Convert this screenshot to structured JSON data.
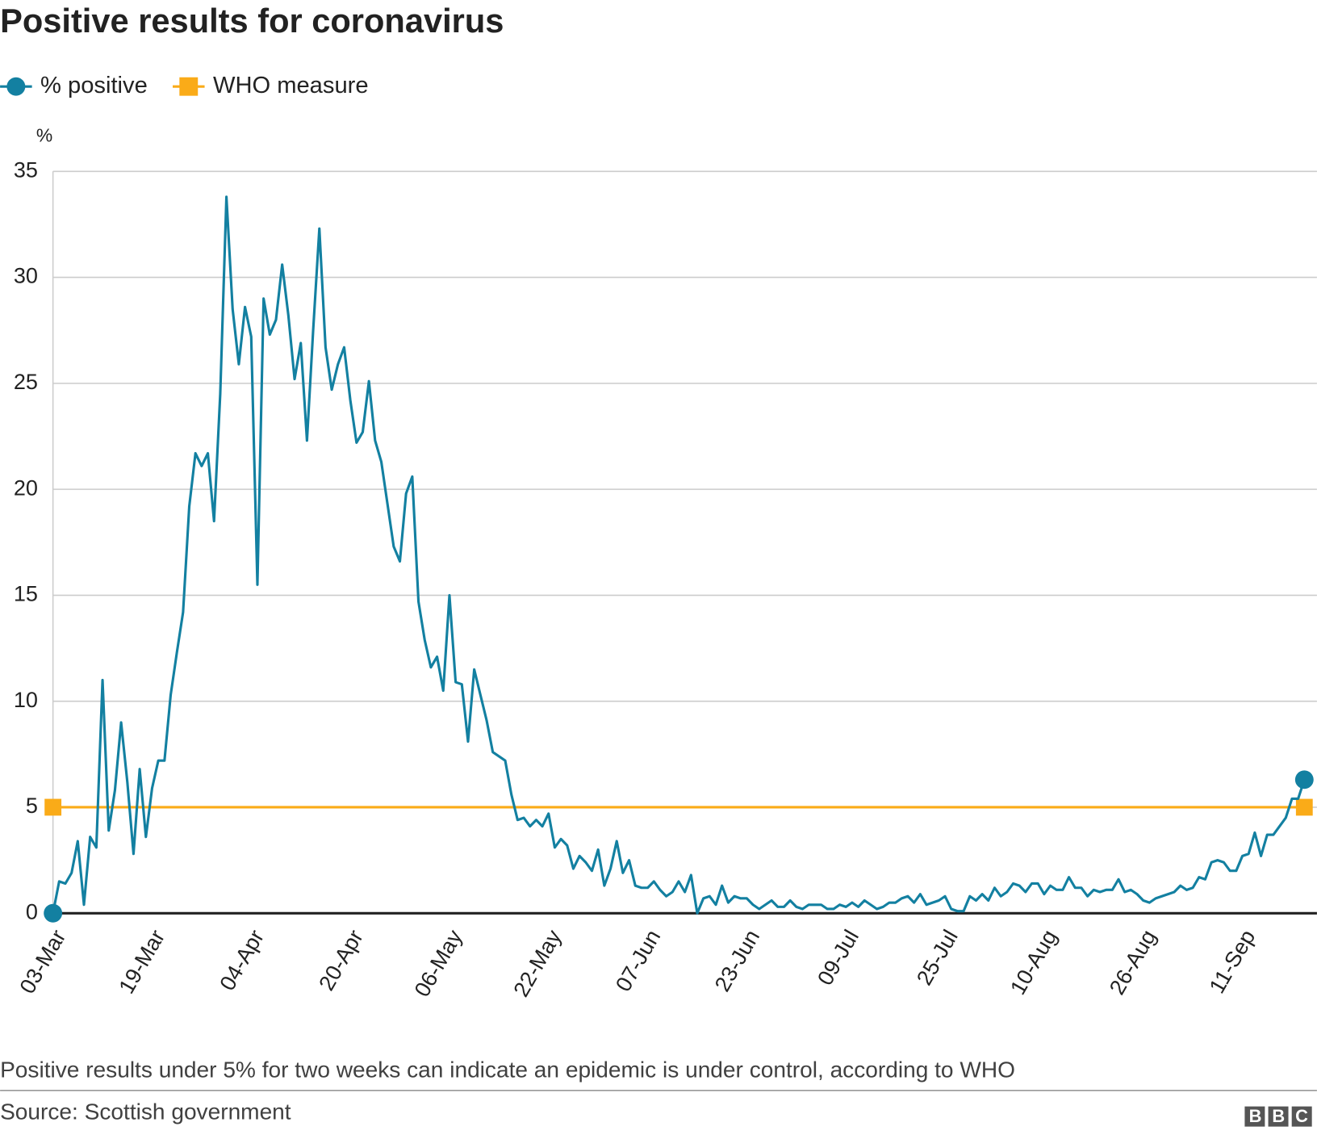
{
  "chart_data": {
    "type": "line",
    "title": "Positive results for coronavirus",
    "y_label": "%",
    "note": "Positive results under 5% for two weeks can indicate an epidemic is under control, according to WHO",
    "source": "Source: Scottish government",
    "logo": "BBC",
    "categories": [
      "03-Mar",
      null,
      null,
      null,
      null,
      null,
      null,
      null,
      null,
      null,
      null,
      null,
      null,
      null,
      null,
      null,
      "19-Mar",
      null,
      null,
      null,
      null,
      null,
      null,
      null,
      null,
      null,
      null,
      null,
      null,
      null,
      null,
      null,
      "04-Apr",
      null,
      null,
      null,
      null,
      null,
      null,
      null,
      null,
      null,
      null,
      null,
      null,
      null,
      null,
      null,
      "20-Apr",
      null,
      null,
      null,
      null,
      null,
      null,
      null,
      null,
      null,
      null,
      null,
      null,
      null,
      null,
      null,
      "06-May",
      null,
      null,
      null,
      null,
      null,
      null,
      null,
      null,
      null,
      null,
      null,
      null,
      null,
      null,
      null,
      "22-May",
      null,
      null,
      null,
      null,
      null,
      null,
      null,
      null,
      null,
      null,
      null,
      null,
      null,
      null,
      null,
      "07-Jun",
      null,
      null,
      null,
      null,
      null,
      null,
      null,
      null,
      null,
      null,
      null,
      null,
      null,
      null,
      null,
      "23-Jun",
      null,
      null,
      null,
      null,
      null,
      null,
      null,
      null,
      null,
      null,
      null,
      null,
      null,
      null,
      null,
      "09-Jul",
      null,
      null,
      null,
      null,
      null,
      null,
      null,
      null,
      null,
      null,
      null,
      null,
      null,
      null,
      null,
      "25-Jul",
      null,
      null,
      null,
      null,
      null,
      null,
      null,
      null,
      null,
      null,
      null,
      null,
      null,
      null,
      null,
      "10-Aug",
      null,
      null,
      null,
      null,
      null,
      null,
      null,
      null,
      null,
      null,
      null,
      null,
      null,
      null,
      null,
      "26-Aug",
      null,
      null,
      null,
      null,
      null,
      null,
      null,
      null,
      null,
      null,
      null,
      null,
      null,
      null,
      null,
      "11-Sep",
      null,
      null,
      null,
      null,
      null,
      null,
      null,
      null,
      null,
      null
    ],
    "series": [
      {
        "name": "% positive",
        "color": "#1380A1",
        "marker": "circle",
        "values": [
          0,
          1.5,
          1.4,
          1.9,
          3.4,
          0.4,
          3.6,
          3.1,
          11,
          3.9,
          5.8,
          9,
          6.2,
          2.8,
          6.8,
          3.6,
          5.9,
          7.2,
          7.2,
          10.3,
          12.3,
          14.2,
          19.2,
          21.7,
          21.1,
          21.7,
          18.5,
          24.5,
          33.8,
          28.5,
          25.9,
          28.6,
          27.2,
          15.5,
          29,
          27.3,
          28,
          30.6,
          28.2,
          25.2,
          26.9,
          22.3,
          27.5,
          32.3,
          26.7,
          24.7,
          25.9,
          26.7,
          24.2,
          22.2,
          22.7,
          25.1,
          22.3,
          21.3,
          19.3,
          17.3,
          16.6,
          19.8,
          20.6,
          14.7,
          12.9,
          11.6,
          12.1,
          10.5,
          15,
          10.9,
          10.8,
          8.1,
          11.5,
          10.3,
          9.1,
          7.6,
          7.4,
          7.2,
          5.6,
          4.4,
          4.5,
          4.1,
          4.4,
          4.1,
          4.7,
          3.1,
          3.5,
          3.2,
          2.1,
          2.7,
          2.4,
          2,
          3,
          1.3,
          2.1,
          3.4,
          1.9,
          2.5,
          1.3,
          1.2,
          1.2,
          1.5,
          1.1,
          0.8,
          1,
          1.5,
          1,
          1.8,
          0,
          0.7,
          0.8,
          0.4,
          1.3,
          0.5,
          0.8,
          0.7,
          0.7,
          0.4,
          0.2,
          0.4,
          0.6,
          0.3,
          0.3,
          0.6,
          0.3,
          0.2,
          0.4,
          0.4,
          0.4,
          0.2,
          0.2,
          0.4,
          0.3,
          0.5,
          0.3,
          0.6,
          0.4,
          0.2,
          0.3,
          0.5,
          0.5,
          0.7,
          0.8,
          0.5,
          0.9,
          0.4,
          0.5,
          0.6,
          0.8,
          0.2,
          0.1,
          0.1,
          0.8,
          0.6,
          0.9,
          0.6,
          1.2,
          0.8,
          1,
          1.4,
          1.3,
          1,
          1.4,
          1.4,
          0.9,
          1.3,
          1.1,
          1.1,
          1.7,
          1.2,
          1.2,
          0.8,
          1.1,
          1,
          1.1,
          1.1,
          1.6,
          1,
          1.1,
          0.9,
          0.6,
          0.5,
          0.7,
          0.8,
          0.9,
          1,
          1.3,
          1.1,
          1.2,
          1.7,
          1.6,
          2.4,
          2.5,
          2.4,
          2,
          2,
          2.7,
          2.8,
          3.8,
          2.7,
          3.7,
          3.7,
          4.1,
          4.5,
          5.4,
          5.4,
          6.3
        ]
      },
      {
        "name": "WHO measure",
        "color": "#FAAB18",
        "marker": "square",
        "values": [
          5,
          5,
          5,
          5,
          5,
          5,
          5,
          5,
          5,
          5,
          5,
          5,
          5,
          5,
          5,
          5,
          5,
          5,
          5,
          5,
          5,
          5,
          5,
          5,
          5,
          5,
          5,
          5,
          5,
          5,
          5,
          5,
          5,
          5,
          5,
          5,
          5,
          5,
          5,
          5,
          5,
          5,
          5,
          5,
          5,
          5,
          5,
          5,
          5,
          5,
          5,
          5,
          5,
          5,
          5,
          5,
          5,
          5,
          5,
          5,
          5,
          5,
          5,
          5,
          5,
          5,
          5,
          5,
          5,
          5,
          5,
          5,
          5,
          5,
          5,
          5,
          5,
          5,
          5,
          5,
          5,
          5,
          5,
          5,
          5,
          5,
          5,
          5,
          5,
          5,
          5,
          5,
          5,
          5,
          5,
          5,
          5,
          5,
          5,
          5,
          5,
          5,
          5,
          5,
          5,
          5,
          5,
          5,
          5,
          5,
          5,
          5,
          5,
          5,
          5,
          5,
          5,
          5,
          5,
          5,
          5,
          5,
          5,
          5,
          5,
          5,
          5,
          5,
          5,
          5,
          5,
          5,
          5,
          5,
          5,
          5,
          5,
          5,
          5,
          5,
          5,
          5,
          5,
          5,
          5,
          5,
          5,
          5,
          5,
          5,
          5,
          5,
          5,
          5,
          5,
          5,
          5,
          5,
          5,
          5,
          5,
          5,
          5,
          5,
          5,
          5,
          5,
          5,
          5,
          5,
          5,
          5,
          5,
          5,
          5,
          5,
          5,
          5,
          5,
          5,
          5,
          5,
          5,
          5,
          5,
          5,
          5,
          5,
          5,
          5,
          5,
          5,
          5,
          5,
          5,
          5,
          5,
          5,
          5,
          5,
          5,
          5,
          5
        ]
      }
    ],
    "ylim": [
      0,
      35
    ],
    "yticks": [
      0,
      5,
      10,
      15,
      20,
      25,
      30,
      35
    ],
    "grid": true
  }
}
